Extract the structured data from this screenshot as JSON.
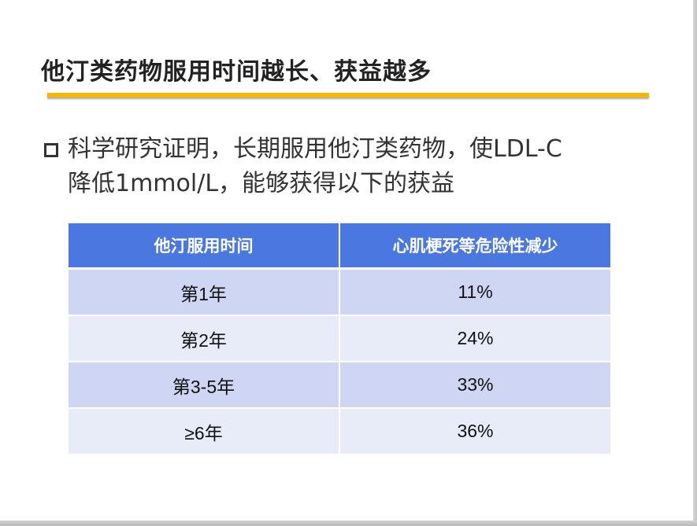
{
  "title": "他汀类药物服用时间越长、获益越多",
  "bullet": {
    "line1": "科学研究证明，长期服用他汀类药物，使LDL-C",
    "line2": "降低1mmol/L，能够获得以下的获益"
  },
  "table": {
    "headers": [
      "他汀服用时间",
      "心肌梗死等危险性减少"
    ],
    "rows": [
      [
        "第1年",
        "11%"
      ],
      [
        "第2年",
        "24%"
      ],
      [
        "第3-5年",
        "33%"
      ],
      [
        "≥6年",
        "36%"
      ]
    ]
  },
  "colors": {
    "accent_rule": "#f5b800",
    "header_bg": "#4a78e0",
    "row_dark": "#cfd6f3",
    "row_light": "#e8ebf8"
  }
}
